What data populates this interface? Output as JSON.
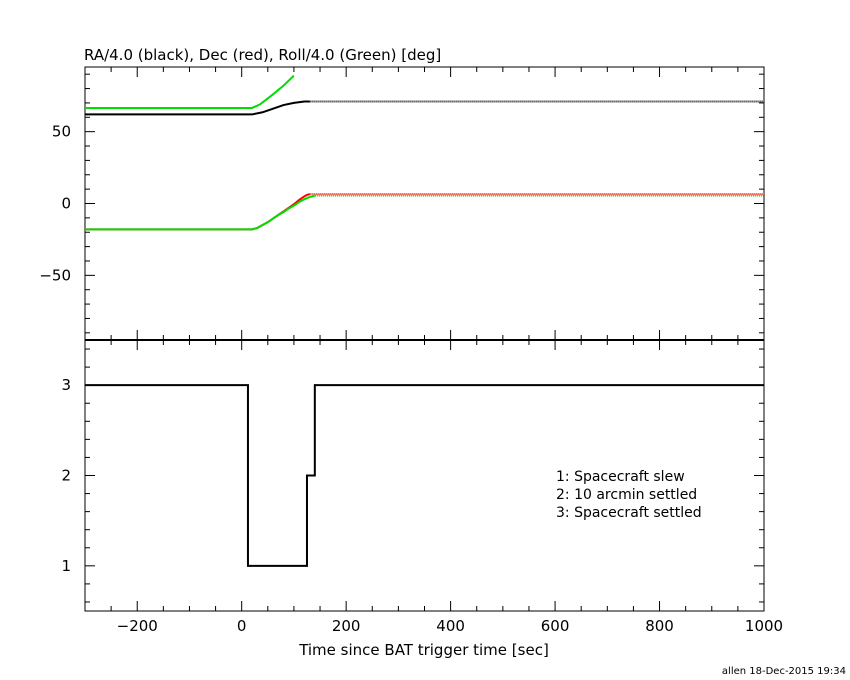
{
  "chart_data": [
    {
      "type": "line",
      "title": "RA/4.0 (black), Dec (red), Roll/4.0 (Green) [deg]",
      "xlim": [
        -300,
        1000
      ],
      "ylim": [
        -95,
        95
      ],
      "grid": false,
      "y_ticks": [
        -50,
        0,
        50
      ],
      "y_tick_labels": [
        "−50",
        "0",
        "50"
      ],
      "series": [
        {
          "color": "#000000",
          "x": [
            -300,
            20,
            40,
            60,
            80,
            100,
            120,
            130,
            380,
            1000
          ],
          "y": [
            62,
            62,
            63.5,
            66,
            68.5,
            70,
            71,
            71,
            71,
            71
          ],
          "dotted_from": 380
        },
        {
          "color": "#ff0000",
          "x": [
            -300,
            20,
            30,
            40,
            50,
            60,
            70,
            80,
            90,
            100,
            110,
            120,
            125,
            130,
            380,
            1000
          ],
          "y": [
            -18,
            -18,
            -17,
            -15,
            -13,
            -10.5,
            -8,
            -5.5,
            -3,
            -0.5,
            2.5,
            5,
            6,
            6.5,
            6.5,
            6.5
          ],
          "dotted_from": 380
        },
        {
          "color": "#00dd00",
          "x": [
            -300,
            20,
            35,
            60,
            80,
            100
          ],
          "y": [
            66.5,
            66.5,
            69,
            76,
            82,
            89
          ],
          "dotted_from": null
        },
        {
          "color": "#00dd00",
          "x": [
            -300,
            20,
            30,
            40,
            50,
            60,
            70,
            80,
            90,
            100,
            110,
            120,
            130,
            140,
            380,
            1000
          ],
          "y": [
            -18,
            -18,
            -17,
            -15,
            -13,
            -10.5,
            -8,
            -6,
            -3.5,
            -1.5,
            1,
            3,
            4.5,
            5.5,
            5.5,
            5.5
          ],
          "dotted_from": 380
        }
      ]
    },
    {
      "type": "line",
      "xlabel": "Time since BAT trigger time [sec]",
      "xlim": [
        -300,
        1000
      ],
      "ylim": [
        0.5,
        3.5
      ],
      "grid": false,
      "x_ticks": [
        -200,
        0,
        200,
        400,
        600,
        800,
        1000
      ],
      "x_tick_labels": [
        "−200",
        "0",
        "200",
        "400",
        "600",
        "800",
        "1000"
      ],
      "y_ticks": [
        1,
        2,
        3
      ],
      "y_tick_labels": [
        "1",
        "2",
        "3"
      ],
      "series": [
        {
          "color": "#000000",
          "step": true,
          "x": [
            -300,
            12,
            12,
            125,
            125,
            140,
            140,
            1000
          ],
          "y": [
            3,
            3,
            1,
            1,
            2,
            2,
            3,
            3
          ]
        }
      ],
      "annotations": [
        "1: Spacecraft slew",
        "2: 10 arcmin settled",
        "3: Spacecraft settled"
      ]
    }
  ],
  "footer": "allen 18-Dec-2015 19:34"
}
